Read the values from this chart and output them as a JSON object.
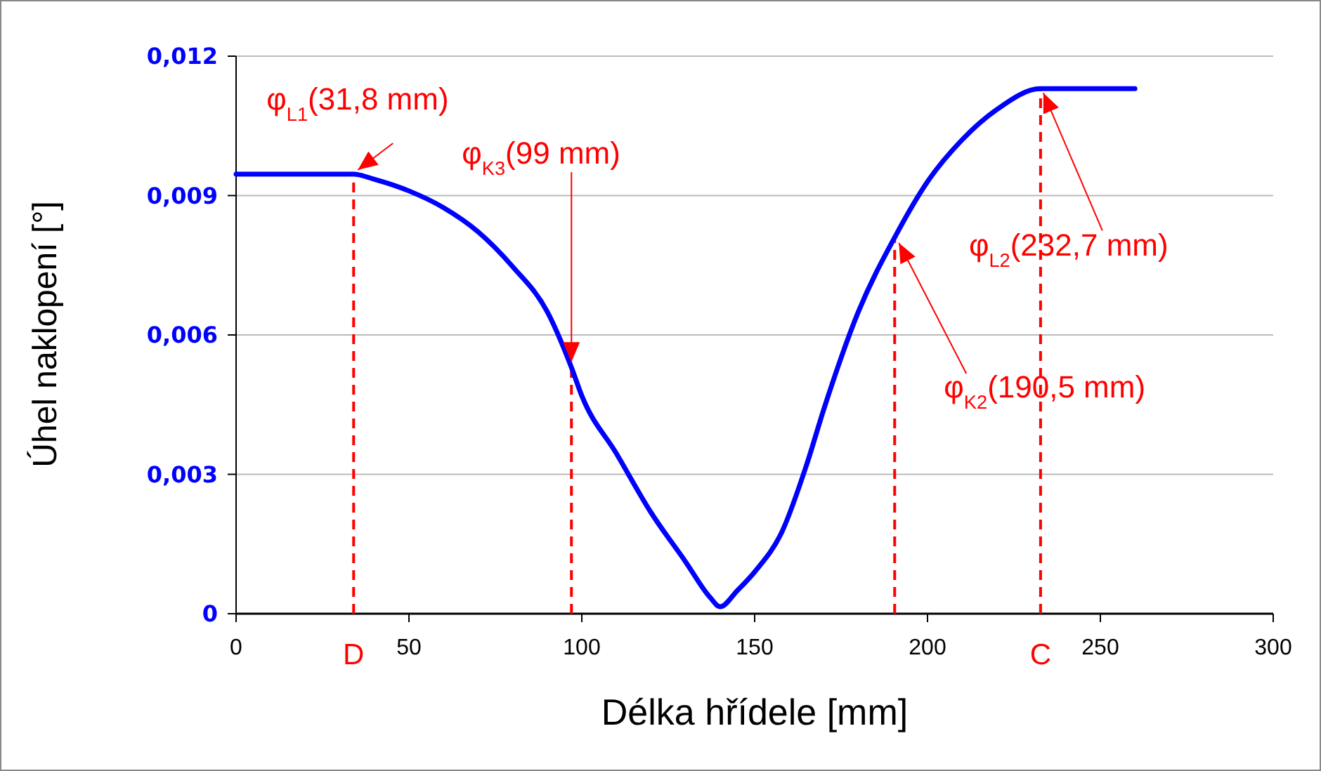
{
  "chart_data": {
    "type": "line",
    "xlabel": "Délka hřídele [mm]",
    "ylabel": "Úhel naklopení [°]",
    "x": [
      0,
      34,
      40,
      50,
      60,
      70,
      80,
      90,
      97,
      100,
      110,
      120,
      130,
      137,
      140,
      145,
      150,
      158,
      165,
      170,
      180,
      190.5,
      200,
      210,
      220,
      232.7,
      260
    ],
    "series": [
      {
        "color": "#0000ff",
        "values": [
          0.00946,
          0.00946,
          0.00935,
          0.0091,
          0.00874,
          0.00822,
          0.00747,
          0.0065,
          0.0053,
          0.00469,
          0.00345,
          0.00218,
          0.00112,
          0.00036,
          0.00015,
          0.0005,
          0.0009,
          0.00178,
          0.0032,
          0.0044,
          0.0065,
          0.0081,
          0.0093,
          0.0102,
          0.01085,
          0.0113,
          0.0113
        ]
      }
    ],
    "xlim": [
      0,
      300
    ],
    "xticks": [
      0,
      50,
      100,
      150,
      200,
      250,
      300
    ],
    "ylim": [
      0,
      0.012
    ],
    "yticks": [
      0,
      {
        "value": 0.003,
        "label": "0,003"
      },
      {
        "value": 0.006,
        "label": "0,006"
      },
      {
        "value": 0.009,
        "label": "0,009"
      },
      {
        "value": 0.012,
        "label": "0,012"
      }
    ],
    "grid": "y",
    "marker": "none",
    "line_style": "solid",
    "ref_lines": [
      {
        "axis": "x",
        "value": 34,
        "label": "D",
        "color": "#ff0000",
        "line_style": "dashed"
      },
      {
        "axis": "x",
        "value": 97,
        "label": null,
        "color": "#ff0000",
        "line_style": "dashed"
      },
      {
        "axis": "x",
        "value": 190.5,
        "label": null,
        "color": "#ff0000",
        "line_style": "dashed"
      },
      {
        "axis": "x",
        "value": 232.7,
        "label": "C",
        "color": "#ff0000",
        "line_style": "dashed"
      }
    ],
    "annotations": [
      {
        "text": "φ$_{L1}$(31,8 mm)",
        "x": 34,
        "y": 0.00946
      },
      {
        "text": "φ$_{K3}$(99 mm)",
        "x": 97,
        "y": 0.0053
      },
      {
        "text": "φ$_{K2}$(190,5 mm)",
        "x": 190.5,
        "y": 0.0081
      },
      {
        "text": "φ$_{L2}$(232,7 mm)",
        "x": 232.7,
        "y": 0.0113
      }
    ]
  }
}
